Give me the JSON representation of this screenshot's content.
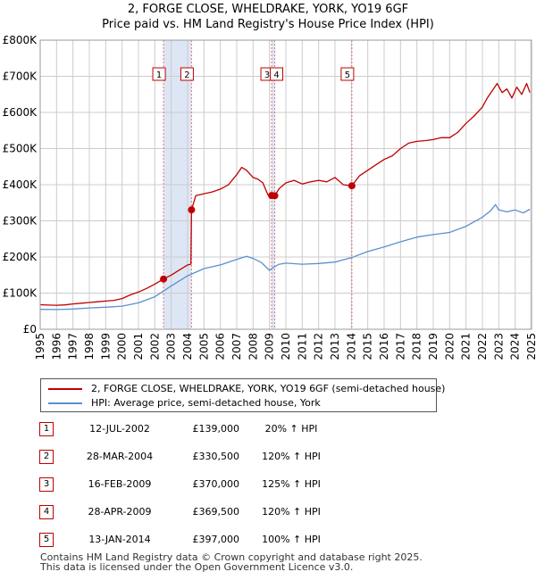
{
  "chart_data": {
    "type": "line",
    "title": "2, FORGE CLOSE, WHELDRAKE, YORK, YO19 6GF",
    "subtitle": "Price paid vs. HM Land Registry's House Price Index (HPI)",
    "xlabel": "",
    "ylabel": "",
    "xlim": [
      1995,
      2025
    ],
    "ylim": [
      0,
      800000
    ],
    "y_tick_values": [
      0,
      100000,
      200000,
      300000,
      400000,
      500000,
      600000,
      700000,
      800000
    ],
    "y_tick_labels": [
      "£0",
      "£100K",
      "£200K",
      "£300K",
      "£400K",
      "£500K",
      "£600K",
      "£700K",
      "£800K"
    ],
    "x_ticks": [
      1995,
      1996,
      1997,
      1998,
      1999,
      2000,
      2001,
      2002,
      2003,
      2004,
      2005,
      2006,
      2007,
      2008,
      2009,
      2010,
      2011,
      2012,
      2013,
      2014,
      2015,
      2016,
      2017,
      2018,
      2019,
      2020,
      2021,
      2022,
      2023,
      2024,
      2025
    ],
    "grid": true,
    "colors": {
      "property": "#c00000",
      "hpi": "#5b8fd0",
      "grid": "#cccccc",
      "shade": "#dde6f5",
      "marker_line": "#e57373"
    },
    "series": [
      {
        "name": "2, FORGE CLOSE, WHELDRAKE, YORK, YO19 6GF (semi-detached house)",
        "x": [
          1995.0,
          1995.5,
          1996.0,
          1996.5,
          1997.0,
          1997.5,
          1998.0,
          1998.5,
          1999.0,
          1999.5,
          2000.0,
          2000.5,
          2001.0,
          2001.5,
          2002.0,
          2002.53,
          2003.0,
          2003.5,
          2004.0,
          2004.2,
          2004.24,
          2004.5,
          2005.0,
          2005.5,
          2006.0,
          2006.5,
          2007.0,
          2007.3,
          2007.6,
          2008.0,
          2008.3,
          2008.6,
          2008.9,
          2009.13,
          2009.32,
          2009.6,
          2010.0,
          2010.5,
          2011.0,
          2011.5,
          2012.0,
          2012.5,
          2013.0,
          2013.5,
          2014.03,
          2014.5,
          2015.0,
          2015.5,
          2016.0,
          2016.5,
          2017.0,
          2017.5,
          2018.0,
          2018.5,
          2019.0,
          2019.5,
          2020.0,
          2020.5,
          2021.0,
          2021.5,
          2022.0,
          2022.3,
          2022.6,
          2022.9,
          2023.2,
          2023.5,
          2023.8,
          2024.1,
          2024.4,
          2024.7,
          2024.9
        ],
        "values": [
          68000,
          67000,
          66500,
          67500,
          70000,
          72000,
          74000,
          76000,
          78000,
          80000,
          85000,
          95000,
          103000,
          113000,
          125000,
          139000,
          150000,
          164000,
          178000,
          180000,
          330500,
          370000,
          375000,
          380000,
          388000,
          400000,
          428000,
          448000,
          440000,
          420000,
          415000,
          405000,
          372000,
          370000,
          369500,
          390000,
          405000,
          412000,
          402000,
          408000,
          412000,
          408000,
          420000,
          400000,
          397000,
          425000,
          440000,
          455000,
          470000,
          480000,
          500000,
          515000,
          520000,
          522000,
          525000,
          530000,
          530000,
          545000,
          570000,
          590000,
          615000,
          640000,
          660000,
          680000,
          655000,
          665000,
          640000,
          670000,
          650000,
          680000,
          655000
        ]
      },
      {
        "name": "HPI: Average price, semi-detached house, York",
        "x": [
          1995.0,
          1996.0,
          1997.0,
          1998.0,
          1999.0,
          2000.0,
          2001.0,
          2002.0,
          2003.0,
          2004.0,
          2005.0,
          2006.0,
          2007.0,
          2007.6,
          2008.0,
          2008.5,
          2009.0,
          2009.2,
          2009.6,
          2010.0,
          2011.0,
          2012.0,
          2013.0,
          2014.0,
          2015.0,
          2016.0,
          2017.0,
          2018.0,
          2019.0,
          2020.0,
          2021.0,
          2022.0,
          2022.5,
          2022.8,
          2023.0,
          2023.5,
          2024.0,
          2024.5,
          2024.9
        ],
        "values": [
          55000,
          54500,
          56000,
          59000,
          61000,
          64000,
          73000,
          90000,
          120000,
          148000,
          168000,
          178000,
          193000,
          202000,
          196000,
          185000,
          163000,
          170000,
          180000,
          183000,
          180000,
          182000,
          186000,
          198000,
          215000,
          228000,
          242000,
          255000,
          262000,
          268000,
          285000,
          310000,
          328000,
          345000,
          330000,
          325000,
          330000,
          322000,
          332000
        ]
      }
    ],
    "sales": [
      {
        "label": "1",
        "x": 2002.53,
        "price": 139000
      },
      {
        "label": "2",
        "x": 2004.24,
        "price": 330500
      },
      {
        "label": "3",
        "x": 2009.13,
        "price": 370000
      },
      {
        "label": "4",
        "x": 2009.32,
        "price": 369500
      },
      {
        "label": "5",
        "x": 2014.03,
        "price": 397000
      }
    ],
    "shaded_ranges": [
      [
        2002.53,
        2004.24
      ],
      [
        2009.13,
        2009.32
      ]
    ]
  },
  "legend": {
    "property_label": "2, FORGE CLOSE, WHELDRAKE, YORK, YO19 6GF (semi-detached house)",
    "hpi_label": "HPI: Average price, semi-detached house, York"
  },
  "sales_table": [
    {
      "num": "1",
      "date": "12-JUL-2002",
      "price": "£139,000",
      "hpi": "20% ↑ HPI"
    },
    {
      "num": "2",
      "date": "28-MAR-2004",
      "price": "£330,500",
      "hpi": "120% ↑ HPI"
    },
    {
      "num": "3",
      "date": "16-FEB-2009",
      "price": "£370,000",
      "hpi": "125% ↑ HPI"
    },
    {
      "num": "4",
      "date": "28-APR-2009",
      "price": "£369,500",
      "hpi": "120% ↑ HPI"
    },
    {
      "num": "5",
      "date": "13-JAN-2014",
      "price": "£397,000",
      "hpi": "100% ↑ HPI"
    }
  ],
  "footer": {
    "line1": "Contains HM Land Registry data © Crown copyright and database right 2025.",
    "line2": "This data is licensed under the Open Government Licence v3.0."
  }
}
